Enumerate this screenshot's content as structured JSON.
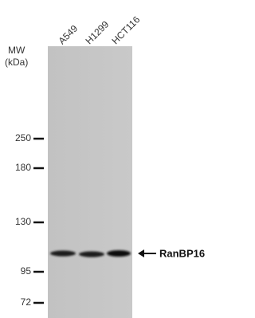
{
  "lanes": [
    "A549",
    "H1299",
    "HCT116"
  ],
  "mw_label": {
    "line1": "MW",
    "line2": "(kDa)"
  },
  "markers": [
    250,
    180,
    130,
    95,
    72
  ],
  "band_label": "RanBP16"
}
